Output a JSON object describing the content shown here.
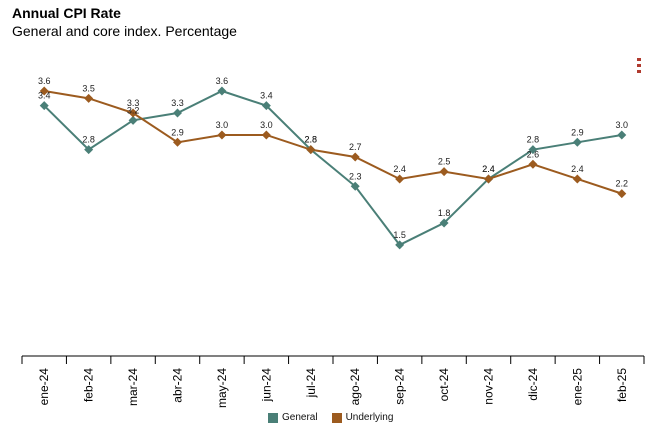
{
  "header": {
    "title": "Annual CPI Rate",
    "subtitle": "General and core index. Percentage"
  },
  "menu": {
    "icon": "kebab-menu-icon"
  },
  "chart_data": {
    "type": "line",
    "title": "Annual CPI Rate",
    "subtitle": "General and core index. Percentage",
    "categories": [
      "ene-24",
      "feb-24",
      "mar-24",
      "abr-24",
      "may-24",
      "jun-24",
      "jul-24",
      "ago-24",
      "sep-24",
      "oct-24",
      "nov-24",
      "dic-24",
      "ene-25",
      "feb-25"
    ],
    "series": [
      {
        "name": "General",
        "color": "#4a7f77",
        "values": [
          3.4,
          2.8,
          3.2,
          3.3,
          3.6,
          3.4,
          2.8,
          2.3,
          1.5,
          1.8,
          2.4,
          2.8,
          2.9,
          3.0
        ]
      },
      {
        "name": "Underlying",
        "color": "#9c5b1f",
        "values": [
          3.6,
          3.5,
          3.3,
          2.9,
          3.0,
          3.0,
          2.8,
          2.7,
          2.4,
          2.5,
          2.4,
          2.6,
          2.4,
          2.2
        ]
      }
    ],
    "ylim": [
      0,
      4
    ],
    "grid": false,
    "legend_position": "bottom-center",
    "xlabel": "",
    "ylabel": ""
  }
}
